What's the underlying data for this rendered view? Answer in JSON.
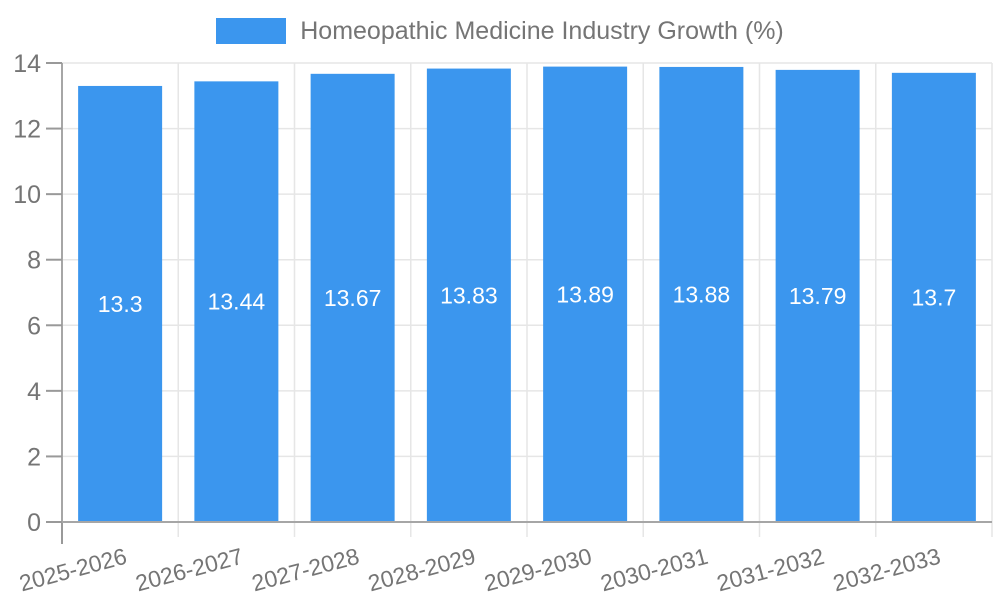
{
  "chart_data": {
    "type": "bar",
    "title": "Homeopathic Medicine Industry Growth (%)",
    "categories": [
      "2025-2026",
      "2026-2027",
      "2027-2028",
      "2028-2029",
      "2029-2030",
      "2030-2031",
      "2031-2032",
      "2032-2033"
    ],
    "values": [
      13.3,
      13.44,
      13.67,
      13.83,
      13.89,
      13.88,
      13.79,
      13.7
    ],
    "xlabel": "",
    "ylabel": "",
    "ylim": [
      0,
      14
    ],
    "ytick_step": 2,
    "yticks": [
      0,
      2,
      4,
      6,
      8,
      10,
      12,
      14
    ],
    "grid": true,
    "legend_position": "top-center",
    "value_labels_visible": true,
    "colors": {
      "bar": "#3B96EE",
      "grid": "#E6E6E6",
      "axis_line": "#A6A6A6",
      "tick": "#999999",
      "axis_text": "#757575",
      "legend_text": "#757575",
      "value_text": "#FFFFFF",
      "background": "#FFFFFF"
    }
  }
}
